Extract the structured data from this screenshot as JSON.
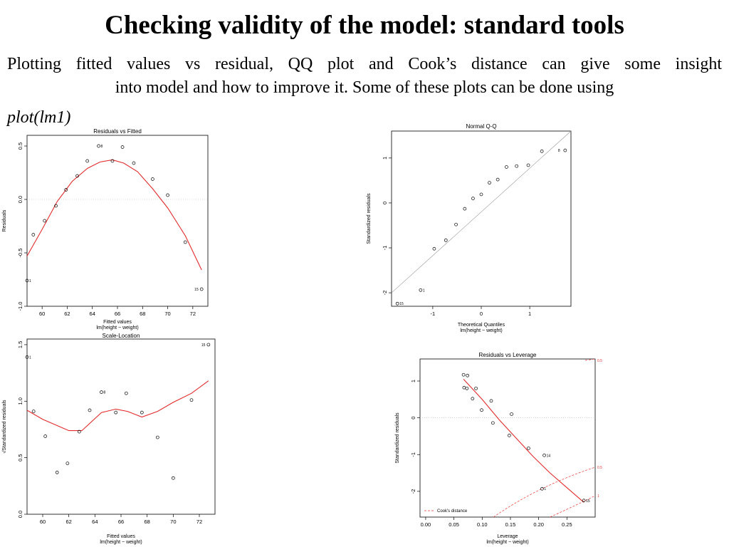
{
  "slide": {
    "title": "Checking validity of the model: standard tools",
    "paragraph_line1": "Plotting fitted values vs residual, QQ plot and Cook’s distance can give some insight",
    "paragraph_line2": "into model and how to improve it. Some of these plots can be done using",
    "code": "plot(lm1)"
  },
  "chart_data": [
    {
      "type": "scatter",
      "title": "Residuals vs Fitted",
      "xlabel": "Fitted values",
      "xlabel2": "lm(height ~ weight)",
      "ylabel": "Residuals",
      "xlim": [
        58.8,
        73.2
      ],
      "ylim": [
        -1.0,
        0.6
      ],
      "xticks": [
        "60",
        "62",
        "64",
        "66",
        "68",
        "70",
        "72"
      ],
      "yticks": [
        "-1.0",
        "-0.5",
        "0.0",
        "0.5"
      ],
      "points": [
        {
          "x": 58.8,
          "y": -0.76,
          "label": "1"
        },
        {
          "x": 59.3,
          "y": -0.33
        },
        {
          "x": 60.2,
          "y": -0.2
        },
        {
          "x": 61.1,
          "y": -0.06
        },
        {
          "x": 61.9,
          "y": 0.09
        },
        {
          "x": 62.8,
          "y": 0.22
        },
        {
          "x": 63.6,
          "y": 0.36
        },
        {
          "x": 64.5,
          "y": 0.5,
          "label": "8"
        },
        {
          "x": 65.6,
          "y": 0.36
        },
        {
          "x": 66.4,
          "y": 0.49
        },
        {
          "x": 67.3,
          "y": 0.34
        },
        {
          "x": 68.8,
          "y": 0.19
        },
        {
          "x": 70.0,
          "y": 0.04
        },
        {
          "x": 71.4,
          "y": -0.4
        },
        {
          "x": 72.7,
          "y": -0.84,
          "label": "15"
        }
      ],
      "smooth": [
        {
          "x": 58.8,
          "y": -0.53
        },
        {
          "x": 60.0,
          "y": -0.28
        },
        {
          "x": 61.2,
          "y": -0.02
        },
        {
          "x": 62.4,
          "y": 0.17
        },
        {
          "x": 63.6,
          "y": 0.29
        },
        {
          "x": 64.6,
          "y": 0.35
        },
        {
          "x": 65.6,
          "y": 0.37
        },
        {
          "x": 66.5,
          "y": 0.34
        },
        {
          "x": 67.6,
          "y": 0.26
        },
        {
          "x": 68.8,
          "y": 0.1
        },
        {
          "x": 70.0,
          "y": -0.08
        },
        {
          "x": 71.4,
          "y": -0.34
        },
        {
          "x": 72.7,
          "y": -0.66
        }
      ]
    },
    {
      "type": "scatter",
      "title": "Normal Q-Q",
      "xlabel": "Theoretical Quantiles",
      "xlabel2": "lm(height ~ weight)",
      "ylabel": "Standardized residuals",
      "xlim": [
        -1.85,
        1.85
      ],
      "ylim": [
        -2.3,
        1.6
      ],
      "xticks": [
        "-1",
        "0",
        "1"
      ],
      "yticks": [
        "-2",
        "-1",
        "0",
        "1"
      ],
      "reference_line": [
        {
          "x": -1.85,
          "y": -2.0
        },
        {
          "x": 1.85,
          "y": 1.6
        }
      ],
      "points": [
        {
          "x": -1.73,
          "y": -2.24,
          "label": "15"
        },
        {
          "x": -1.25,
          "y": -1.94,
          "label": "1"
        },
        {
          "x": -0.97,
          "y": -1.02
        },
        {
          "x": -0.73,
          "y": -0.83
        },
        {
          "x": -0.52,
          "y": -0.48
        },
        {
          "x": -0.34,
          "y": -0.13
        },
        {
          "x": -0.17,
          "y": 0.1
        },
        {
          "x": 0.0,
          "y": 0.19
        },
        {
          "x": 0.17,
          "y": 0.45
        },
        {
          "x": 0.34,
          "y": 0.52
        },
        {
          "x": 0.52,
          "y": 0.8
        },
        {
          "x": 0.73,
          "y": 0.82
        },
        {
          "x": 0.97,
          "y": 0.84
        },
        {
          "x": 1.25,
          "y": 1.15
        },
        {
          "x": 1.73,
          "y": 1.17,
          "label": "8"
        }
      ]
    },
    {
      "type": "scatter",
      "title": "Scale-Location",
      "xlabel": "Fitted values",
      "xlabel2": "lm(height ~ weight)",
      "ylabel": "√Standardized residuals",
      "xlim": [
        58.8,
        73.2
      ],
      "ylim": [
        0.0,
        1.55
      ],
      "xticks": [
        "60",
        "62",
        "64",
        "66",
        "68",
        "70",
        "72"
      ],
      "yticks": [
        "0.0",
        "0.5",
        "1.0",
        "1.5"
      ],
      "points": [
        {
          "x": 58.8,
          "y": 1.39,
          "label": "1"
        },
        {
          "x": 59.3,
          "y": 0.91
        },
        {
          "x": 60.2,
          "y": 0.69
        },
        {
          "x": 61.1,
          "y": 0.37
        },
        {
          "x": 61.9,
          "y": 0.45
        },
        {
          "x": 62.8,
          "y": 0.73
        },
        {
          "x": 63.6,
          "y": 0.92
        },
        {
          "x": 64.5,
          "y": 1.08,
          "label": "8"
        },
        {
          "x": 65.6,
          "y": 0.9
        },
        {
          "x": 66.4,
          "y": 1.07
        },
        {
          "x": 67.6,
          "y": 0.9
        },
        {
          "x": 68.8,
          "y": 0.68
        },
        {
          "x": 70.0,
          "y": 0.32
        },
        {
          "x": 71.4,
          "y": 1.01
        },
        {
          "x": 72.7,
          "y": 1.5,
          "label": "15"
        }
      ],
      "smooth": [
        {
          "x": 58.8,
          "y": 0.92
        },
        {
          "x": 60.0,
          "y": 0.84
        },
        {
          "x": 61.2,
          "y": 0.78
        },
        {
          "x": 62.0,
          "y": 0.74
        },
        {
          "x": 63.0,
          "y": 0.74
        },
        {
          "x": 64.5,
          "y": 0.9
        },
        {
          "x": 65.6,
          "y": 0.93
        },
        {
          "x": 66.5,
          "y": 0.91
        },
        {
          "x": 67.6,
          "y": 0.86
        },
        {
          "x": 68.8,
          "y": 0.91
        },
        {
          "x": 70.0,
          "y": 0.99
        },
        {
          "x": 71.4,
          "y": 1.07
        },
        {
          "x": 72.7,
          "y": 1.18
        }
      ]
    },
    {
      "type": "scatter",
      "title": "Residuals vs Leverage",
      "xlabel": "Leverage",
      "xlabel2": "lm(height ~ weight)",
      "ylabel": "Standardized residuals",
      "xlim": [
        -0.01,
        0.3
      ],
      "ylim": [
        -2.7,
        1.6
      ],
      "xticks": [
        "0.00",
        "0.05",
        "0.10",
        "0.15",
        "0.20",
        "0.25"
      ],
      "yticks": [
        "-2",
        "-1",
        "0",
        "1"
      ],
      "legend": {
        "label": "Cook's distance",
        "position": "bottom-left"
      },
      "contour_labels": [
        "0.5",
        "0.5",
        "1"
      ],
      "points": [
        {
          "x": 0.067,
          "y": 1.17
        },
        {
          "x": 0.074,
          "y": 1.15
        },
        {
          "x": 0.068,
          "y": 0.82
        },
        {
          "x": 0.073,
          "y": 0.8
        },
        {
          "x": 0.089,
          "y": 0.8
        },
        {
          "x": 0.083,
          "y": 0.52
        },
        {
          "x": 0.099,
          "y": 0.21
        },
        {
          "x": 0.116,
          "y": 0.46
        },
        {
          "x": 0.119,
          "y": -0.14
        },
        {
          "x": 0.152,
          "y": 0.1
        },
        {
          "x": 0.148,
          "y": -0.48
        },
        {
          "x": 0.182,
          "y": -0.83
        },
        {
          "x": 0.21,
          "y": -1.02,
          "label": "14"
        },
        {
          "x": 0.206,
          "y": -1.93,
          "label": "1"
        },
        {
          "x": 0.28,
          "y": -2.25,
          "label": "15"
        }
      ],
      "smooth": [
        {
          "x": 0.067,
          "y": 1.05
        },
        {
          "x": 0.1,
          "y": 0.5
        },
        {
          "x": 0.13,
          "y": -0.05
        },
        {
          "x": 0.16,
          "y": -0.55
        },
        {
          "x": 0.19,
          "y": -1.05
        },
        {
          "x": 0.22,
          "y": -1.5
        },
        {
          "x": 0.25,
          "y": -1.9
        },
        {
          "x": 0.28,
          "y": -2.3
        }
      ]
    }
  ]
}
